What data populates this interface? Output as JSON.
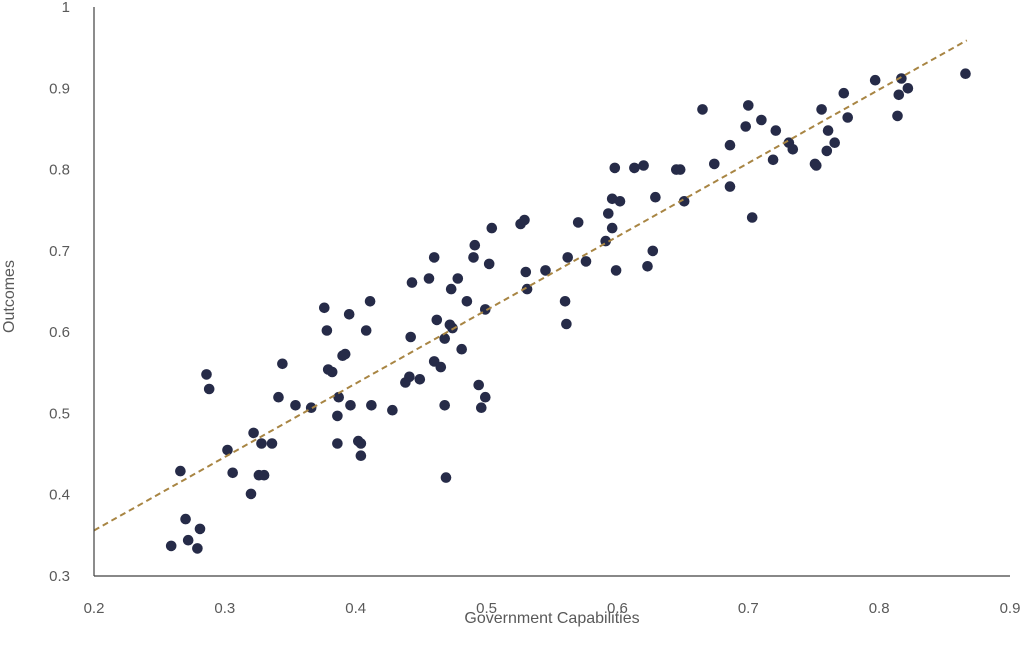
{
  "chart_data": {
    "type": "scatter",
    "title": "",
    "xlabel": "Government Capabilities",
    "ylabel": "Outcomes",
    "xlim": [
      0.2,
      0.9
    ],
    "ylim": [
      0.3,
      1.0
    ],
    "xticks": [
      "0.2",
      "0.3",
      "0.4",
      "0.5",
      "0.6",
      "0.7",
      "0.8",
      "0.9"
    ],
    "yticks": [
      "0.3",
      "0.4",
      "0.5",
      "0.6",
      "0.7",
      "0.8",
      "0.9",
      "1"
    ],
    "grid": false,
    "colors": {
      "points": "#262b48",
      "trendline": "#a88543",
      "axis": "#404040",
      "text": "#595959"
    },
    "trendline": {
      "style": "dashed",
      "x": [
        0.2,
        0.867
      ],
      "y": [
        0.356,
        0.959
      ]
    },
    "series": [
      {
        "points": [
          [
            0.259,
            0.337
          ],
          [
            0.266,
            0.429
          ],
          [
            0.27,
            0.37
          ],
          [
            0.272,
            0.344
          ],
          [
            0.279,
            0.334
          ],
          [
            0.281,
            0.358
          ],
          [
            0.286,
            0.548
          ],
          [
            0.288,
            0.53
          ],
          [
            0.302,
            0.455
          ],
          [
            0.306,
            0.427
          ],
          [
            0.32,
            0.401
          ],
          [
            0.322,
            0.476
          ],
          [
            0.326,
            0.424
          ],
          [
            0.328,
            0.463
          ],
          [
            0.33,
            0.424
          ],
          [
            0.336,
            0.463
          ],
          [
            0.341,
            0.52
          ],
          [
            0.344,
            0.561
          ],
          [
            0.354,
            0.51
          ],
          [
            0.366,
            0.507
          ],
          [
            0.376,
            0.63
          ],
          [
            0.378,
            0.602
          ],
          [
            0.379,
            0.554
          ],
          [
            0.382,
            0.551
          ],
          [
            0.386,
            0.497
          ],
          [
            0.386,
            0.463
          ],
          [
            0.387,
            0.52
          ],
          [
            0.39,
            0.571
          ],
          [
            0.392,
            0.573
          ],
          [
            0.395,
            0.622
          ],
          [
            0.396,
            0.51
          ],
          [
            0.402,
            0.466
          ],
          [
            0.404,
            0.448
          ],
          [
            0.404,
            0.463
          ],
          [
            0.408,
            0.602
          ],
          [
            0.411,
            0.638
          ],
          [
            0.412,
            0.51
          ],
          [
            0.428,
            0.504
          ],
          [
            0.438,
            0.538
          ],
          [
            0.441,
            0.545
          ],
          [
            0.442,
            0.594
          ],
          [
            0.443,
            0.661
          ],
          [
            0.449,
            0.542
          ],
          [
            0.456,
            0.666
          ],
          [
            0.46,
            0.692
          ],
          [
            0.46,
            0.564
          ],
          [
            0.462,
            0.615
          ],
          [
            0.465,
            0.557
          ],
          [
            0.468,
            0.592
          ],
          [
            0.468,
            0.51
          ],
          [
            0.469,
            0.421
          ],
          [
            0.472,
            0.609
          ],
          [
            0.473,
            0.653
          ],
          [
            0.474,
            0.605
          ],
          [
            0.478,
            0.666
          ],
          [
            0.481,
            0.579
          ],
          [
            0.485,
            0.638
          ],
          [
            0.49,
            0.692
          ],
          [
            0.491,
            0.707
          ],
          [
            0.494,
            0.535
          ],
          [
            0.496,
            0.507
          ],
          [
            0.499,
            0.628
          ],
          [
            0.499,
            0.52
          ],
          [
            0.502,
            0.684
          ],
          [
            0.504,
            0.728
          ],
          [
            0.526,
            0.733
          ],
          [
            0.529,
            0.738
          ],
          [
            0.53,
            0.674
          ],
          [
            0.531,
            0.653
          ],
          [
            0.545,
            0.676
          ],
          [
            0.56,
            0.638
          ],
          [
            0.561,
            0.61
          ],
          [
            0.562,
            0.692
          ],
          [
            0.57,
            0.735
          ],
          [
            0.576,
            0.687
          ],
          [
            0.591,
            0.712
          ],
          [
            0.593,
            0.746
          ],
          [
            0.596,
            0.764
          ],
          [
            0.596,
            0.728
          ],
          [
            0.598,
            0.802
          ],
          [
            0.599,
            0.676
          ],
          [
            0.602,
            0.761
          ],
          [
            0.613,
            0.802
          ],
          [
            0.62,
            0.805
          ],
          [
            0.623,
            0.681
          ],
          [
            0.627,
            0.7
          ],
          [
            0.629,
            0.766
          ],
          [
            0.645,
            0.8
          ],
          [
            0.648,
            0.8
          ],
          [
            0.651,
            0.761
          ],
          [
            0.665,
            0.874
          ],
          [
            0.674,
            0.807
          ],
          [
            0.686,
            0.83
          ],
          [
            0.686,
            0.779
          ],
          [
            0.698,
            0.853
          ],
          [
            0.7,
            0.879
          ],
          [
            0.703,
            0.741
          ],
          [
            0.71,
            0.861
          ],
          [
            0.719,
            0.812
          ],
          [
            0.721,
            0.848
          ],
          [
            0.731,
            0.833
          ],
          [
            0.734,
            0.825
          ],
          [
            0.751,
            0.807
          ],
          [
            0.752,
            0.805
          ],
          [
            0.756,
            0.874
          ],
          [
            0.76,
            0.823
          ],
          [
            0.761,
            0.848
          ],
          [
            0.766,
            0.833
          ],
          [
            0.773,
            0.894
          ],
          [
            0.776,
            0.864
          ],
          [
            0.797,
            0.91
          ],
          [
            0.814,
            0.866
          ],
          [
            0.815,
            0.892
          ],
          [
            0.817,
            0.912
          ],
          [
            0.822,
            0.9
          ],
          [
            0.866,
            0.918
          ]
        ]
      }
    ]
  }
}
